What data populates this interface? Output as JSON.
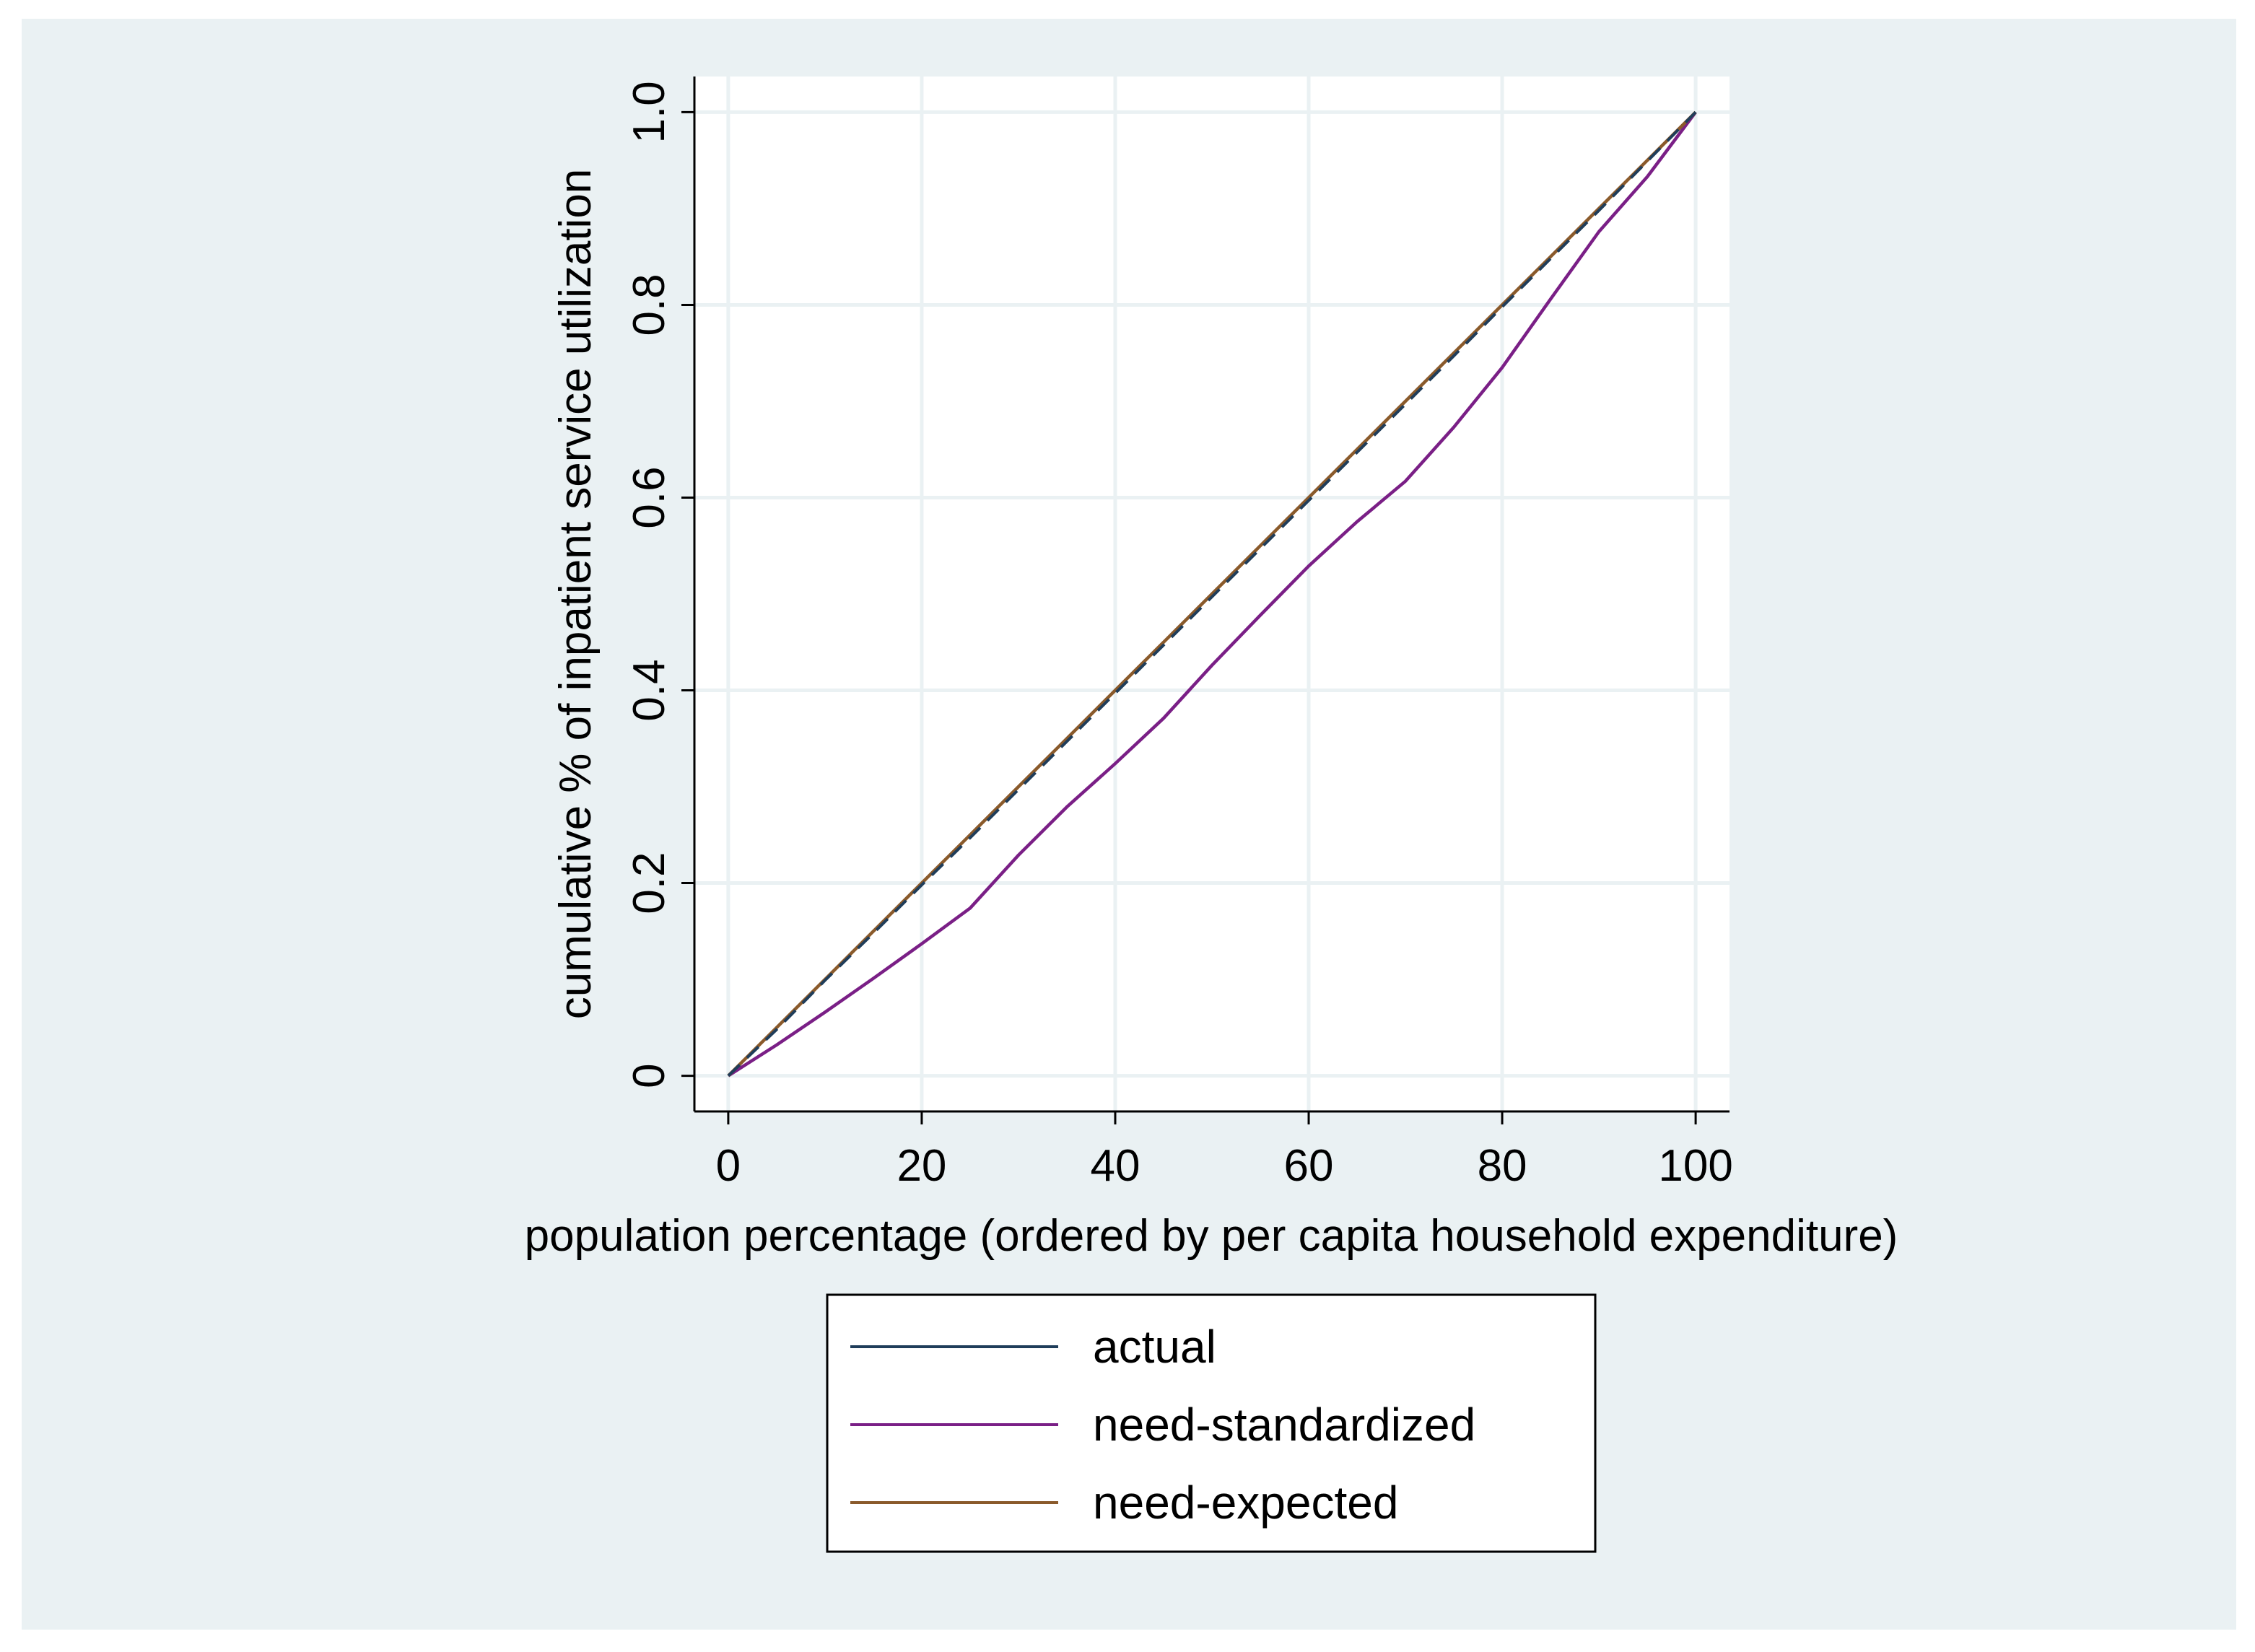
{
  "chart_data": {
    "type": "line",
    "title": "",
    "xlabel": "population percentage (ordered by per capita household expenditure)",
    "ylabel": "cumulative % of inpatient service utilization",
    "xlim": [
      -3.5,
      103.5
    ],
    "ylim": [
      -0.037,
      1.037
    ],
    "xticks": [
      0,
      20,
      40,
      60,
      80,
      100
    ],
    "xtick_labels": [
      "0",
      "20",
      "40",
      "60",
      "80",
      "100"
    ],
    "yticks": [
      0,
      0.2,
      0.4,
      0.6,
      0.8,
      1.0
    ],
    "ytick_labels": [
      "0",
      "0.2",
      "0.4",
      "0.6",
      "0.8",
      "1.0"
    ],
    "grid": true,
    "legend_position": "bottom",
    "series": [
      {
        "name": "actual",
        "color": "#1f3d5a",
        "style": "dashed",
        "x": [
          0,
          5,
          10,
          15,
          20,
          25,
          30,
          35,
          40,
          45,
          50,
          55,
          60,
          65,
          70,
          75,
          80,
          85,
          90,
          95,
          100
        ],
        "y": [
          0,
          0.048,
          0.099,
          0.148,
          0.198,
          0.247,
          0.297,
          0.347,
          0.397,
          0.447,
          0.497,
          0.547,
          0.597,
          0.647,
          0.697,
          0.747,
          0.798,
          0.848,
          0.898,
          0.949,
          1.0
        ]
      },
      {
        "name": "need-standardized",
        "color": "#7a1f86",
        "style": "solid",
        "x": [
          0,
          5,
          10,
          15,
          20,
          25,
          30,
          35,
          40,
          45,
          50,
          55,
          60,
          65,
          70,
          75,
          80,
          85,
          90,
          95,
          100
        ],
        "y": [
          0,
          0.032,
          0.066,
          0.101,
          0.137,
          0.174,
          0.229,
          0.279,
          0.324,
          0.371,
          0.426,
          0.478,
          0.529,
          0.575,
          0.617,
          0.673,
          0.735,
          0.806,
          0.876,
          0.933,
          1.0
        ]
      },
      {
        "name": "need-expected",
        "color": "#8a5a2b",
        "style": "solid",
        "x": [
          0,
          5,
          10,
          15,
          20,
          25,
          30,
          35,
          40,
          45,
          50,
          55,
          60,
          65,
          70,
          75,
          80,
          85,
          90,
          95,
          100
        ],
        "y": [
          0,
          0.05,
          0.1,
          0.15,
          0.2,
          0.25,
          0.3,
          0.35,
          0.4,
          0.45,
          0.5,
          0.55,
          0.6,
          0.65,
          0.7,
          0.75,
          0.8,
          0.85,
          0.9,
          0.95,
          1.0
        ]
      }
    ]
  },
  "colors": {
    "outer_background": "#eaf1f3",
    "plot_background": "#ffffff",
    "grid": "#eaf1f3",
    "axis": "#000000",
    "legend_border": "#000000"
  }
}
